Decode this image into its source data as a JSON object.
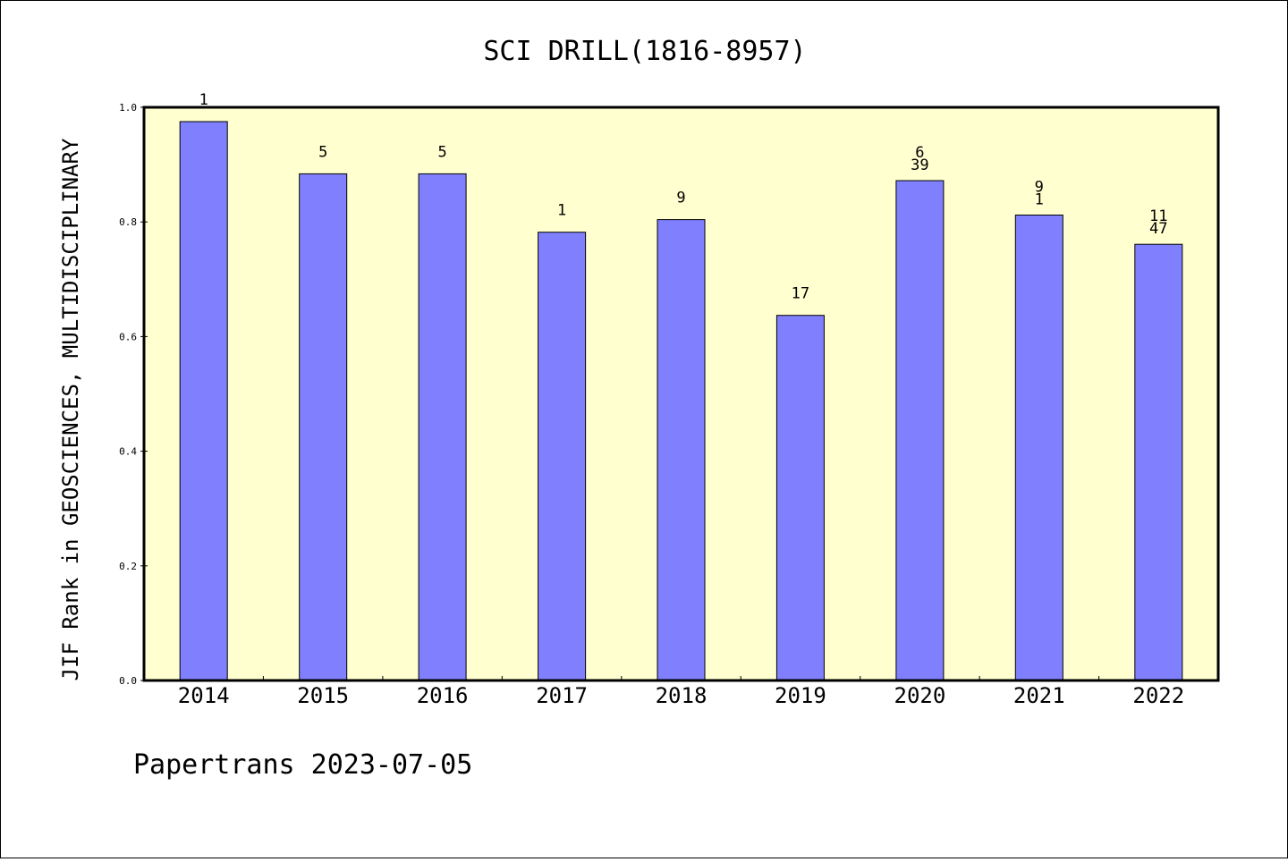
{
  "chart_data": {
    "type": "bar",
    "title": "SCI DRILL(1816-8957)",
    "xlabel": "",
    "ylabel": "JIF Rank in GEOSCIENCES, MULTIDISCIPLINARY",
    "categories": [
      "2014",
      "2015",
      "2016",
      "2017",
      "2018",
      "2019",
      "2020",
      "2021",
      "2022"
    ],
    "values": [
      0.975,
      0.884,
      0.884,
      0.782,
      0.804,
      0.637,
      0.872,
      0.812,
      0.761
    ],
    "bar_labels": [
      [
        "1"
      ],
      [
        "5"
      ],
      [
        "5"
      ],
      [
        "1"
      ],
      [
        "9"
      ],
      [
        "17"
      ],
      [
        "6",
        "39"
      ],
      [
        "9",
        "1"
      ],
      [
        "11",
        "47"
      ]
    ],
    "ylim": [
      0,
      1.0
    ],
    "yticks": [
      "0.0",
      "0.2",
      "0.4",
      "0.6",
      "0.8",
      "1.0"
    ],
    "grid": false,
    "legend": "none",
    "colors": {
      "bar": "#8080ff",
      "plot_background": "#ffffd0",
      "axis": "#000000"
    }
  },
  "footer": {
    "text": "Papertrans 2023-07-05"
  }
}
